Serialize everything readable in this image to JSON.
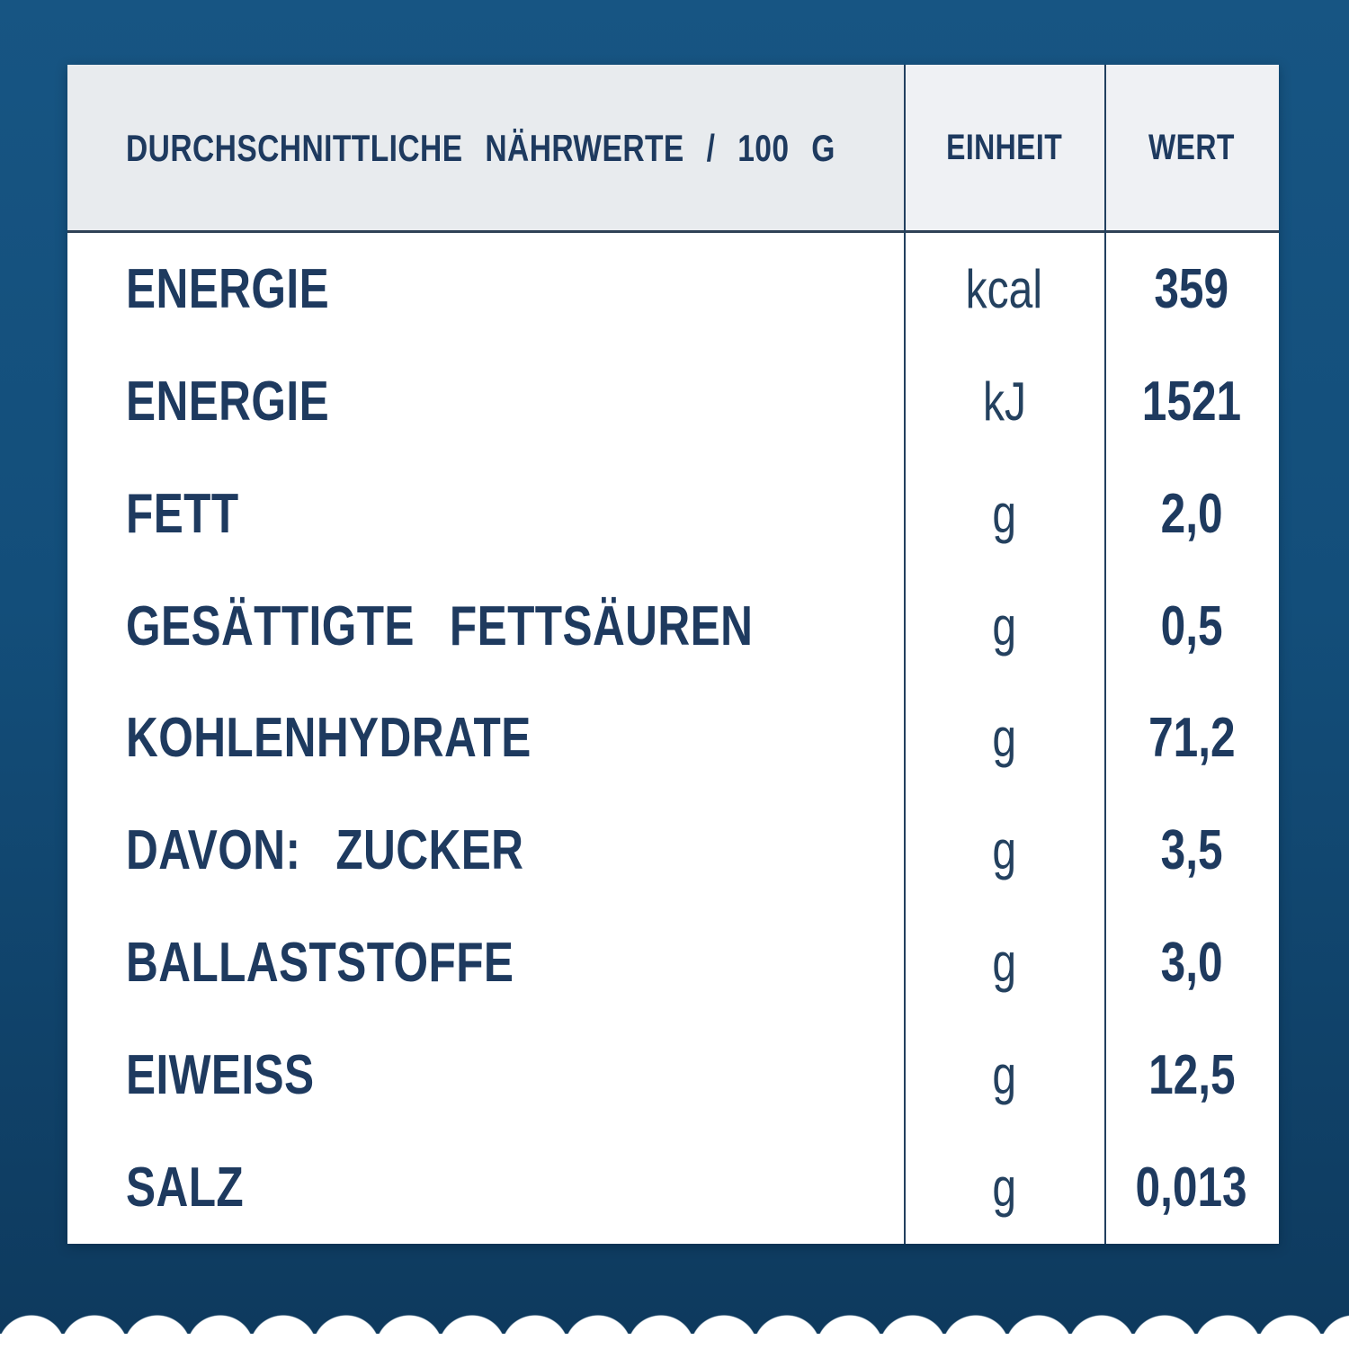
{
  "colors": {
    "background_top": "#175583",
    "background_bottom": "#0e3a5e",
    "navy_text": "#1e3a5f",
    "card_bg": "#ffffff",
    "header_bg_left": "#e8ebee",
    "header_bg_right": "#eff1f4",
    "divider": "#22405f"
  },
  "table": {
    "header": {
      "nutrients": "DURCHSCHNITTLICHE NÄHRWERTE / 100 G",
      "unit": "EINHEIT",
      "value": "WERT"
    },
    "rows": [
      {
        "label": "ENERGIE",
        "unit": "kcal",
        "value": "359"
      },
      {
        "label": "ENERGIE",
        "unit": "kJ",
        "value": "1521"
      },
      {
        "label": "FETT",
        "unit": "g",
        "value": "2,0"
      },
      {
        "label": "GESÄTTIGTE FETTSÄUREN",
        "unit": "g",
        "value": "0,5"
      },
      {
        "label": "KOHLENHYDRATE",
        "unit": "g",
        "value": "71,2"
      },
      {
        "label": "DAVON: ZUCKER",
        "unit": "g",
        "value": "3,5"
      },
      {
        "label": "BALLASTSTOFFE",
        "unit": "g",
        "value": "3,0"
      },
      {
        "label": "EIWEISS",
        "unit": "g",
        "value": "12,5"
      },
      {
        "label": "SALZ",
        "unit": "g",
        "value": "0,013"
      }
    ]
  }
}
